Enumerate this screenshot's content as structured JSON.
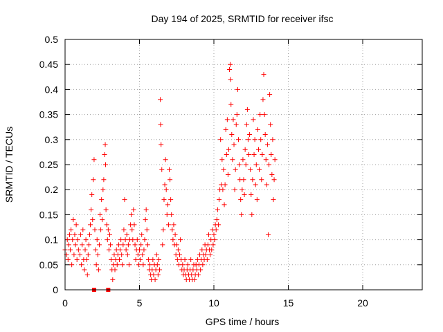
{
  "chart_data": {
    "type": "scatter",
    "title": "Day 194 of 2025, SRMTID for receiver ifsc",
    "xlabel": "GPS time / hours",
    "ylabel": "SRMTID / TECUs",
    "xlim": [
      0,
      24
    ],
    "ylim": [
      0,
      0.5
    ],
    "x_ticks": [
      "0",
      "5",
      "10",
      "15",
      "20"
    ],
    "y_ticks": [
      "0",
      "0.05",
      "0.1",
      "0.15",
      "0.2",
      "0.25",
      "0.3",
      "0.35",
      "0.4",
      "0.45",
      "0.5"
    ],
    "grid": true,
    "marker_color": "#ff0000",
    "series": [
      {
        "marker": "plus",
        "points": [
          [
            0.0,
            0.08
          ],
          [
            0.1,
            0.07
          ],
          [
            0.15,
            0.1
          ],
          [
            0.2,
            0.06
          ],
          [
            0.25,
            0.09
          ],
          [
            0.3,
            0.11
          ],
          [
            0.35,
            0.08
          ],
          [
            0.4,
            0.12
          ],
          [
            0.45,
            0.05
          ],
          [
            0.5,
            0.1
          ],
          [
            0.55,
            0.14
          ],
          [
            0.6,
            0.07
          ],
          [
            0.65,
            0.11
          ],
          [
            0.7,
            0.09
          ],
          [
            0.75,
            0.13
          ],
          [
            0.8,
            0.06
          ],
          [
            0.85,
            0.1
          ],
          [
            0.9,
            0.08
          ],
          [
            1.0,
            0.07
          ],
          [
            1.05,
            0.11
          ],
          [
            1.1,
            0.05
          ],
          [
            1.15,
            0.09
          ],
          [
            1.2,
            0.12
          ],
          [
            1.25,
            0.06
          ],
          [
            1.3,
            0.04
          ],
          [
            1.35,
            0.08
          ],
          [
            1.4,
            0.1
          ],
          [
            1.45,
            0.06
          ],
          [
            1.5,
            0.03
          ],
          [
            1.55,
            0.07
          ],
          [
            1.6,
            0.09
          ],
          [
            1.65,
            0.11
          ],
          [
            1.7,
            0.13
          ],
          [
            1.75,
            0.16
          ],
          [
            1.8,
            0.19
          ],
          [
            1.85,
            0.14
          ],
          [
            1.9,
            0.22
          ],
          [
            1.95,
            0.26
          ],
          [
            2.0,
            0.12
          ],
          [
            2.05,
            0.08
          ],
          [
            2.1,
            0.05
          ],
          [
            2.15,
            0.1
          ],
          [
            2.2,
            0.07
          ],
          [
            2.25,
            0.04
          ],
          [
            2.3,
            0.09
          ],
          [
            2.35,
            0.15
          ],
          [
            2.4,
            0.12
          ],
          [
            2.45,
            0.18
          ],
          [
            2.5,
            0.14
          ],
          [
            2.55,
            0.2
          ],
          [
            2.6,
            0.22
          ],
          [
            2.65,
            0.27
          ],
          [
            2.7,
            0.29
          ],
          [
            2.72,
            0.25
          ],
          [
            2.75,
            0.16
          ],
          [
            2.8,
            0.13
          ],
          [
            2.85,
            0.1
          ],
          [
            2.9,
            0.12
          ],
          [
            2.95,
            0.08
          ],
          [
            3.0,
            0.11
          ],
          [
            3.05,
            0.09
          ],
          [
            3.1,
            0.06
          ],
          [
            3.15,
            0.04
          ],
          [
            3.2,
            0.02
          ],
          [
            3.25,
            0.05
          ],
          [
            3.3,
            0.07
          ],
          [
            3.35,
            0.04
          ],
          [
            3.4,
            0.06
          ],
          [
            3.45,
            0.08
          ],
          [
            3.5,
            0.05
          ],
          [
            3.55,
            0.07
          ],
          [
            3.6,
            0.09
          ],
          [
            3.65,
            0.06
          ],
          [
            3.7,
            0.08
          ],
          [
            3.75,
            0.1
          ],
          [
            3.8,
            0.07
          ],
          [
            3.85,
            0.05
          ],
          [
            3.9,
            0.09
          ],
          [
            3.95,
            0.12
          ],
          [
            4.0,
            0.18
          ],
          [
            4.05,
            0.1
          ],
          [
            4.1,
            0.08
          ],
          [
            4.15,
            0.11
          ],
          [
            4.2,
            0.07
          ],
          [
            4.25,
            0.09
          ],
          [
            4.3,
            0.05
          ],
          [
            4.35,
            0.1
          ],
          [
            4.4,
            0.13
          ],
          [
            4.45,
            0.15
          ],
          [
            4.5,
            0.12
          ],
          [
            4.55,
            0.1
          ],
          [
            4.6,
            0.16
          ],
          [
            4.65,
            0.13
          ],
          [
            4.7,
            0.09
          ],
          [
            4.75,
            0.06
          ],
          [
            4.8,
            0.08
          ],
          [
            4.85,
            0.1
          ],
          [
            4.9,
            0.07
          ],
          [
            4.95,
            0.05
          ],
          [
            5.0,
            0.08
          ],
          [
            5.05,
            0.06
          ],
          [
            5.1,
            0.09
          ],
          [
            5.15,
            0.11
          ],
          [
            5.2,
            0.07
          ],
          [
            5.25,
            0.05
          ],
          [
            5.3,
            0.08
          ],
          [
            5.35,
            0.1
          ],
          [
            5.4,
            0.14
          ],
          [
            5.45,
            0.16
          ],
          [
            5.5,
            0.12
          ],
          [
            5.55,
            0.09
          ],
          [
            5.6,
            0.06
          ],
          [
            5.65,
            0.04
          ],
          [
            5.7,
            0.05
          ],
          [
            5.75,
            0.03
          ],
          [
            5.8,
            0.02
          ],
          [
            5.85,
            0.04
          ],
          [
            5.9,
            0.06
          ],
          [
            5.95,
            0.03
          ],
          [
            6.0,
            0.05
          ],
          [
            6.05,
            0.02
          ],
          [
            6.1,
            0.04
          ],
          [
            6.15,
            0.07
          ],
          [
            6.2,
            0.05
          ],
          [
            6.25,
            0.03
          ],
          [
            6.3,
            0.06
          ],
          [
            6.35,
            0.04
          ],
          [
            6.4,
            0.38
          ],
          [
            6.42,
            0.33
          ],
          [
            6.45,
            0.29
          ],
          [
            6.5,
            0.24
          ],
          [
            6.55,
            0.09
          ],
          [
            6.6,
            0.12
          ],
          [
            6.65,
            0.18
          ],
          [
            6.7,
            0.21
          ],
          [
            6.75,
            0.26
          ],
          [
            6.8,
            0.2
          ],
          [
            6.85,
            0.15
          ],
          [
            6.9,
            0.17
          ],
          [
            6.95,
            0.13
          ],
          [
            7.0,
            0.24
          ],
          [
            7.05,
            0.22
          ],
          [
            7.1,
            0.18
          ],
          [
            7.15,
            0.15
          ],
          [
            7.2,
            0.12
          ],
          [
            7.25,
            0.1
          ],
          [
            7.3,
            0.13
          ],
          [
            7.35,
            0.09
          ],
          [
            7.4,
            0.11
          ],
          [
            7.45,
            0.07
          ],
          [
            7.5,
            0.09
          ],
          [
            7.55,
            0.06
          ],
          [
            7.6,
            0.08
          ],
          [
            7.65,
            0.05
          ],
          [
            7.7,
            0.07
          ],
          [
            7.75,
            0.1
          ],
          [
            7.8,
            0.06
          ],
          [
            7.85,
            0.04
          ],
          [
            7.9,
            0.05
          ],
          [
            7.95,
            0.03
          ],
          [
            8.0,
            0.04
          ],
          [
            8.05,
            0.06
          ],
          [
            8.1,
            0.03
          ],
          [
            8.15,
            0.02
          ],
          [
            8.2,
            0.04
          ],
          [
            8.25,
            0.05
          ],
          [
            8.3,
            0.03
          ],
          [
            8.35,
            0.02
          ],
          [
            8.4,
            0.04
          ],
          [
            8.45,
            0.06
          ],
          [
            8.5,
            0.03
          ],
          [
            8.55,
            0.02
          ],
          [
            8.6,
            0.04
          ],
          [
            8.65,
            0.05
          ],
          [
            8.7,
            0.02
          ],
          [
            8.75,
            0.03
          ],
          [
            8.8,
            0.05
          ],
          [
            8.85,
            0.04
          ],
          [
            8.9,
            0.06
          ],
          [
            8.95,
            0.03
          ],
          [
            9.0,
            0.05
          ],
          [
            9.05,
            0.07
          ],
          [
            9.1,
            0.04
          ],
          [
            9.15,
            0.06
          ],
          [
            9.2,
            0.08
          ],
          [
            9.25,
            0.05
          ],
          [
            9.3,
            0.07
          ],
          [
            9.35,
            0.06
          ],
          [
            9.4,
            0.09
          ],
          [
            9.45,
            0.07
          ],
          [
            9.5,
            0.08
          ],
          [
            9.55,
            0.06
          ],
          [
            9.6,
            0.09
          ],
          [
            9.65,
            0.11
          ],
          [
            9.7,
            0.08
          ],
          [
            9.75,
            0.07
          ],
          [
            9.8,
            0.1
          ],
          [
            9.85,
            0.08
          ],
          [
            9.9,
            0.12
          ],
          [
            9.95,
            0.09
          ],
          [
            10.0,
            0.11
          ],
          [
            10.05,
            0.1
          ],
          [
            10.1,
            0.13
          ],
          [
            10.15,
            0.12
          ],
          [
            10.2,
            0.14
          ],
          [
            10.25,
            0.16
          ],
          [
            10.3,
            0.13
          ],
          [
            10.35,
            0.18
          ],
          [
            10.4,
            0.2
          ],
          [
            10.45,
            0.3
          ],
          [
            10.5,
            0.21
          ],
          [
            10.55,
            0.26
          ],
          [
            10.6,
            0.2
          ],
          [
            10.65,
            0.24
          ],
          [
            10.7,
            0.17
          ],
          [
            10.75,
            0.21
          ],
          [
            10.8,
            0.32
          ],
          [
            10.85,
            0.27
          ],
          [
            10.9,
            0.34
          ],
          [
            10.95,
            0.23
          ],
          [
            11.0,
            0.28
          ],
          [
            11.05,
            0.44
          ],
          [
            11.1,
            0.45
          ],
          [
            11.12,
            0.42
          ],
          [
            11.15,
            0.37
          ],
          [
            11.2,
            0.31
          ],
          [
            11.25,
            0.26
          ],
          [
            11.3,
            0.34
          ],
          [
            11.35,
            0.29
          ],
          [
            11.4,
            0.2
          ],
          [
            11.45,
            0.24
          ],
          [
            11.5,
            0.33
          ],
          [
            11.55,
            0.35
          ],
          [
            11.6,
            0.4
          ],
          [
            11.65,
            0.3
          ],
          [
            11.7,
            0.25
          ],
          [
            11.75,
            0.22
          ],
          [
            11.8,
            0.18
          ],
          [
            11.85,
            0.15
          ],
          [
            11.9,
            0.2
          ],
          [
            11.95,
            0.26
          ],
          [
            12.0,
            0.22
          ],
          [
            12.05,
            0.19
          ],
          [
            12.1,
            0.28
          ],
          [
            12.15,
            0.25
          ],
          [
            12.2,
            0.33
          ],
          [
            12.25,
            0.36
          ],
          [
            12.3,
            0.3
          ],
          [
            12.35,
            0.27
          ],
          [
            12.4,
            0.31
          ],
          [
            12.45,
            0.24
          ],
          [
            12.5,
            0.19
          ],
          [
            12.55,
            0.15
          ],
          [
            12.6,
            0.22
          ],
          [
            12.65,
            0.34
          ],
          [
            12.7,
            0.27
          ],
          [
            12.75,
            0.3
          ],
          [
            12.8,
            0.21
          ],
          [
            12.85,
            0.25
          ],
          [
            12.9,
            0.18
          ],
          [
            12.95,
            0.32
          ],
          [
            13.0,
            0.28
          ],
          [
            13.05,
            0.24
          ],
          [
            13.1,
            0.35
          ],
          [
            13.15,
            0.3
          ],
          [
            13.2,
            0.22
          ],
          [
            13.25,
            0.27
          ],
          [
            13.3,
            0.38
          ],
          [
            13.35,
            0.43
          ],
          [
            13.4,
            0.35
          ],
          [
            13.45,
            0.31
          ],
          [
            13.5,
            0.26
          ],
          [
            13.55,
            0.21
          ],
          [
            13.6,
            0.29
          ],
          [
            13.65,
            0.11
          ],
          [
            13.7,
            0.25
          ],
          [
            13.75,
            0.39
          ],
          [
            13.8,
            0.33
          ],
          [
            13.85,
            0.27
          ],
          [
            13.9,
            0.23
          ],
          [
            13.95,
            0.3
          ],
          [
            14.0,
            0.18
          ],
          [
            14.05,
            0.22
          ],
          [
            14.1,
            0.26
          ]
        ]
      },
      {
        "marker": "square",
        "points": [
          [
            1.95,
            0.0
          ],
          [
            2.9,
            0.0
          ]
        ]
      }
    ]
  }
}
